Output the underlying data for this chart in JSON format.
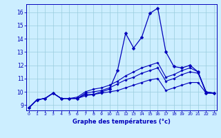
{
  "title": "Graphe des températures (°c)",
  "background_color": "#cceeff",
  "grid_color": "#99ccdd",
  "line_color": "#0000bb",
  "x_ticks": [
    0,
    1,
    2,
    3,
    4,
    5,
    6,
    7,
    8,
    9,
    10,
    11,
    12,
    13,
    14,
    15,
    16,
    17,
    18,
    19,
    20,
    21,
    22,
    23
  ],
  "y_ticks": [
    9,
    10,
    11,
    12,
    13,
    14,
    15,
    16
  ],
  "xlim": [
    -0.3,
    23.3
  ],
  "ylim": [
    8.6,
    16.6
  ],
  "figsize": [
    3.2,
    2.0
  ],
  "dpi": 100,
  "series": [
    {
      "x": [
        0,
        1,
        2,
        3,
        4,
        5,
        6,
        7,
        8,
        9,
        10,
        11,
        12,
        13,
        14,
        15,
        16,
        17,
        18,
        19,
        20,
        21,
        22,
        23
      ],
      "y": [
        8.8,
        9.4,
        9.5,
        9.9,
        9.5,
        9.5,
        9.5,
        9.8,
        9.8,
        10.0,
        10.2,
        11.6,
        14.4,
        13.3,
        14.1,
        15.9,
        16.3,
        13.0,
        11.9,
        11.8,
        12.0,
        11.5,
        9.9,
        9.9
      ],
      "marker_size": 2.5,
      "linewidth": 0.9
    },
    {
      "x": [
        0,
        1,
        2,
        3,
        4,
        5,
        6,
        7,
        8,
        9,
        10,
        11,
        12,
        13,
        14,
        15,
        16,
        17,
        18,
        19,
        20,
        21,
        22,
        23
      ],
      "y": [
        8.8,
        9.4,
        9.5,
        9.9,
        9.5,
        9.5,
        9.6,
        10.0,
        10.2,
        10.3,
        10.5,
        10.8,
        11.2,
        11.5,
        11.8,
        12.0,
        12.2,
        11.1,
        11.3,
        11.6,
        11.8,
        11.5,
        10.0,
        9.9
      ],
      "marker_size": 1.8,
      "linewidth": 0.8
    },
    {
      "x": [
        0,
        1,
        2,
        3,
        4,
        5,
        6,
        7,
        8,
        9,
        10,
        11,
        12,
        13,
        14,
        15,
        16,
        17,
        18,
        19,
        20,
        21,
        22,
        23
      ],
      "y": [
        8.8,
        9.4,
        9.5,
        9.9,
        9.5,
        9.5,
        9.5,
        9.9,
        10.0,
        10.1,
        10.3,
        10.6,
        10.9,
        11.1,
        11.4,
        11.6,
        11.8,
        10.8,
        11.0,
        11.3,
        11.5,
        11.4,
        10.0,
        9.9
      ],
      "marker_size": 1.8,
      "linewidth": 0.8
    },
    {
      "x": [
        0,
        1,
        2,
        3,
        4,
        5,
        6,
        7,
        8,
        9,
        10,
        11,
        12,
        13,
        14,
        15,
        16,
        17,
        18,
        19,
        20,
        21,
        22,
        23
      ],
      "y": [
        8.8,
        9.4,
        9.5,
        9.9,
        9.5,
        9.5,
        9.5,
        9.7,
        9.8,
        9.9,
        10.0,
        10.1,
        10.3,
        10.5,
        10.7,
        10.9,
        11.0,
        10.1,
        10.3,
        10.5,
        10.7,
        10.7,
        9.9,
        9.9
      ],
      "marker_size": 1.8,
      "linewidth": 0.8
    }
  ]
}
